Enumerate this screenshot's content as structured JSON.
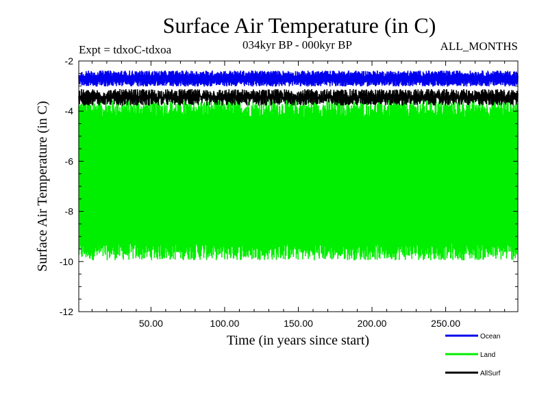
{
  "chart_data": {
    "type": "line",
    "title": "Surface Air Temperature (in C)",
    "subtitle_left": "Expt = tdxoC-tdxoa",
    "subtitle_center": "034kyr BP - 000kyr BP",
    "subtitle_right": "ALL_MONTHS",
    "xlabel": "Time (in years since start)",
    "ylabel": "Surface Air Temperature (in C)",
    "xlim": [
      1,
      299
    ],
    "ylim": [
      -12,
      -2
    ],
    "xticks": [
      50,
      100,
      150,
      200,
      250
    ],
    "xtick_labels": [
      "50.00",
      "100.00",
      "150.00",
      "200.00",
      "250.00"
    ],
    "yticks": [
      -12,
      -10,
      -8,
      -6,
      -4,
      -2
    ],
    "ytick_labels": [
      "-12",
      "-10",
      "-8",
      "-6",
      "-4",
      "-2"
    ],
    "grid": false,
    "legend_position": "bottom-right",
    "series": [
      {
        "name": "Land",
        "color": "#00ee00",
        "seasonal_high": -3.9,
        "seasonal_low": -9.6,
        "noise": 0.35
      },
      {
        "name": "AllSurf",
        "color": "#000000",
        "seasonal_high": -3.3,
        "seasonal_low": -3.6,
        "noise": 0.18
      },
      {
        "name": "Ocean",
        "color": "#0000ee",
        "seasonal_high": -2.5,
        "seasonal_low": -2.9,
        "noise": 0.12
      }
    ],
    "legend": [
      {
        "name": "Ocean",
        "color": "#0000ee"
      },
      {
        "name": "Land",
        "color": "#00ee00"
      },
      {
        "name": "AllSurf",
        "color": "#000000"
      }
    ]
  }
}
